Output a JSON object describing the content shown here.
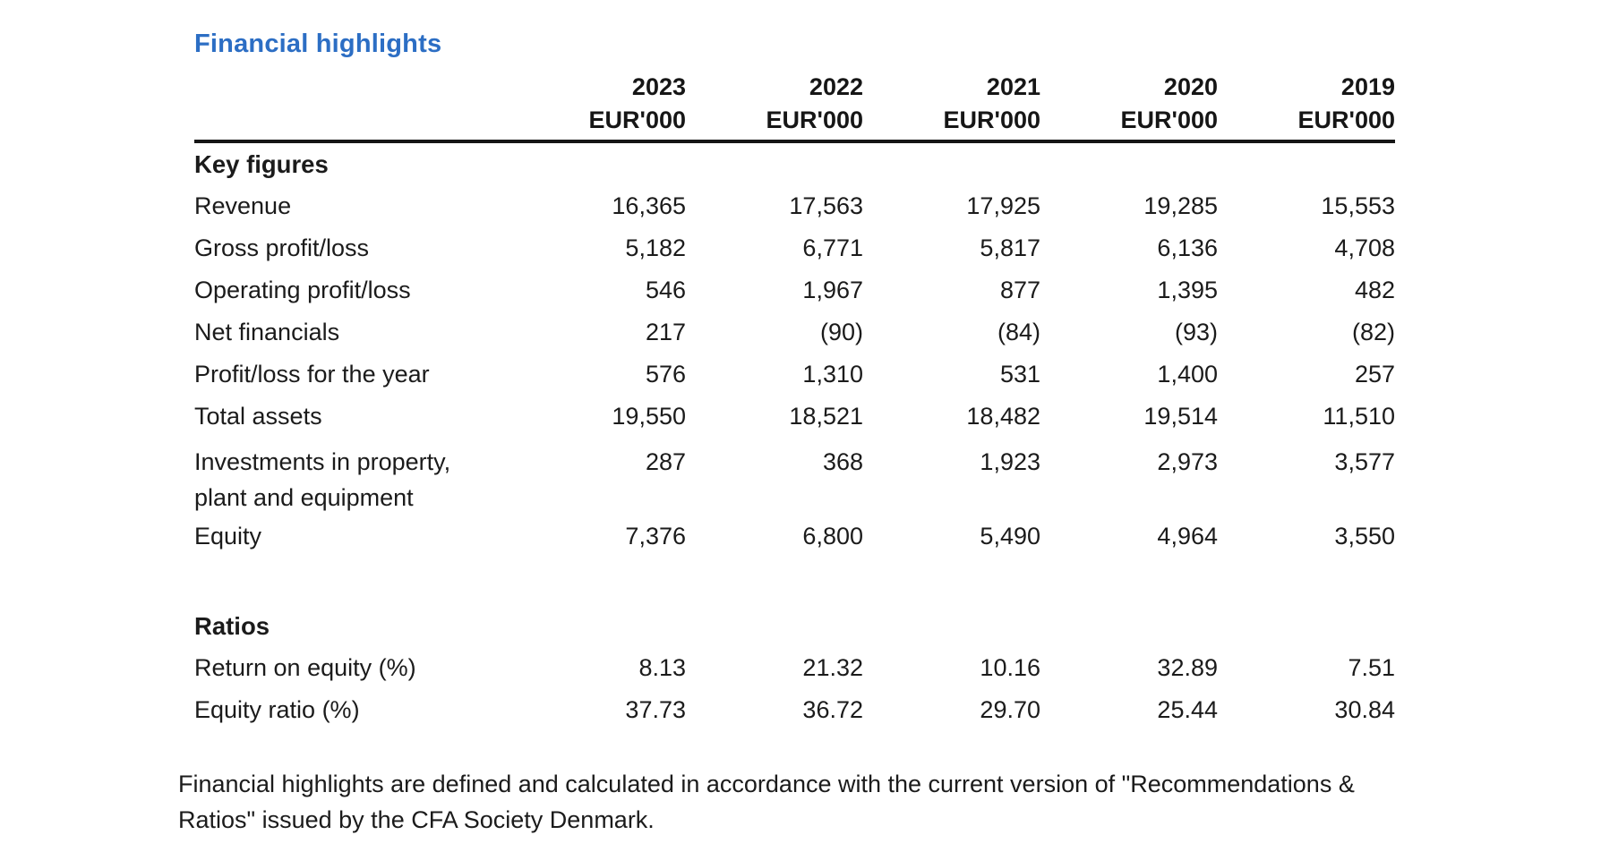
{
  "title": "Financial highlights",
  "table": {
    "columns": [
      {
        "year": "2023",
        "unit": "EUR'000"
      },
      {
        "year": "2022",
        "unit": "EUR'000"
      },
      {
        "year": "2021",
        "unit": "EUR'000"
      },
      {
        "year": "2020",
        "unit": "EUR'000"
      },
      {
        "year": "2019",
        "unit": "EUR'000"
      }
    ],
    "rows": [
      {
        "type": "section",
        "label": "Key figures"
      },
      {
        "type": "data",
        "label": "Revenue",
        "values": [
          "16,365",
          "17,563",
          "17,925",
          "19,285",
          "15,553"
        ]
      },
      {
        "type": "data",
        "label": "Gross profit/loss",
        "values": [
          "5,182",
          "6,771",
          "5,817",
          "6,136",
          "4,708"
        ]
      },
      {
        "type": "data",
        "label": "Operating profit/loss",
        "values": [
          "546",
          "1,967",
          "877",
          "1,395",
          "482"
        ]
      },
      {
        "type": "data",
        "label": "Net financials",
        "values": [
          "217",
          "(90)",
          "(84)",
          "(93)",
          "(82)"
        ]
      },
      {
        "type": "data",
        "label": "Profit/loss for the year",
        "values": [
          "576",
          "1,310",
          "531",
          "1,400",
          "257"
        ]
      },
      {
        "type": "data",
        "label": "Total assets",
        "values": [
          "19,550",
          "18,521",
          "18,482",
          "19,514",
          "11,510"
        ]
      },
      {
        "type": "data",
        "label": "Investments in property, plant and equipment",
        "label_lines": [
          "Investments in property,",
          "plant and equipment"
        ],
        "values": [
          "287",
          "368",
          "1,923",
          "2,973",
          "3,577"
        ]
      },
      {
        "type": "data",
        "label": "Equity",
        "values": [
          "7,376",
          "6,800",
          "5,490",
          "4,964",
          "3,550"
        ]
      },
      {
        "type": "spacer"
      },
      {
        "type": "section",
        "label": "Ratios"
      },
      {
        "type": "data",
        "label": "Return on equity (%)",
        "values": [
          "8.13",
          "21.32",
          "10.16",
          "32.89",
          "7.51"
        ]
      },
      {
        "type": "data",
        "label": "Equity ratio (%)",
        "values": [
          "37.73",
          "36.72",
          "29.70",
          "25.44",
          "30.84"
        ]
      }
    ]
  },
  "footnote": {
    "lines": [
      "Financial highlights are defined and calculated in accordance with the current version of \"Recommendations &",
      "Ratios\" issued by the CFA Society Denmark."
    ]
  },
  "colors": {
    "title_blue": "#2c6ec4",
    "text": "#1b1b1b",
    "rule": "#161616"
  }
}
